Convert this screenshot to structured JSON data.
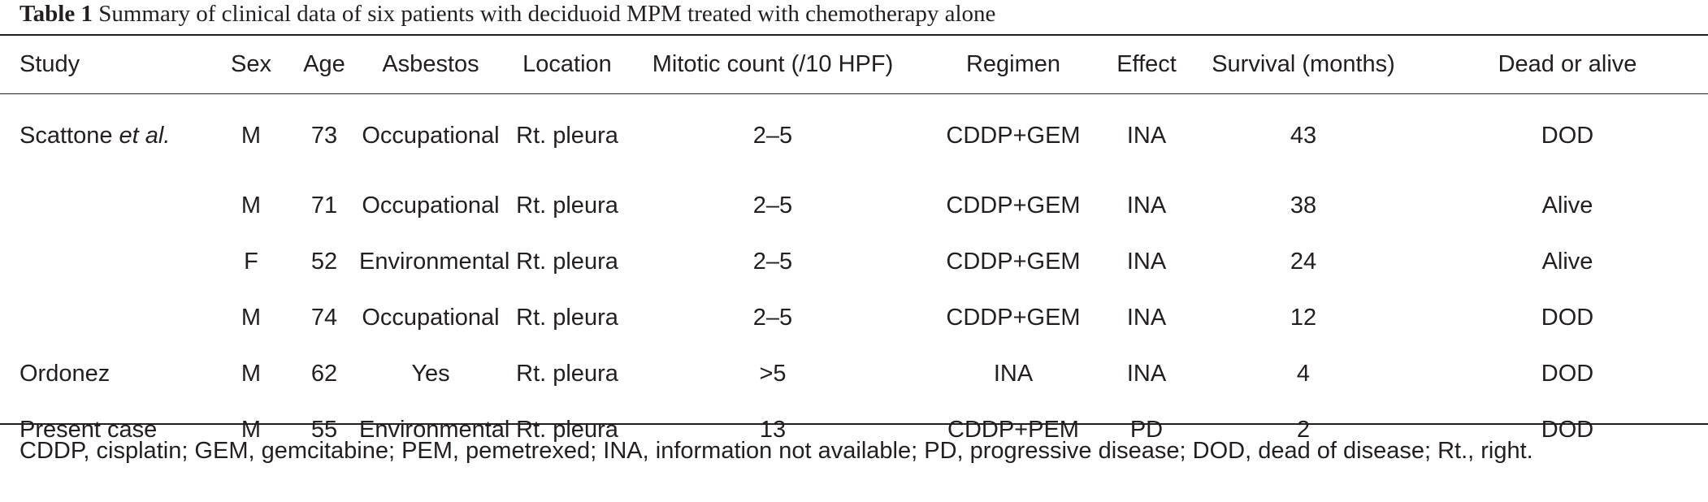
{
  "caption": {
    "label": "Table 1",
    "text": "Summary of clinical data of six patients with deciduoid MPM treated with chemotherapy alone"
  },
  "table": {
    "headers": [
      "Study",
      "Sex",
      "Age",
      "Asbestos",
      "Location",
      "Mitotic count (/10 HPF)",
      "Regimen",
      "Effect",
      "Survival (months)",
      "Dead or alive"
    ],
    "rows": [
      {
        "study": "Scattone ",
        "study_em": "et al.",
        "sex": "M",
        "age": "73",
        "asbestos": "Occupational",
        "location": "Rt. pleura",
        "mitotic": "2–5",
        "regimen": "CDDP+GEM",
        "effect": "INA",
        "survival": "43",
        "status": "DOD"
      },
      {
        "study": "",
        "study_em": "",
        "sex": "M",
        "age": "71",
        "asbestos": "Occupational",
        "location": "Rt. pleura",
        "mitotic": "2–5",
        "regimen": "CDDP+GEM",
        "effect": "INA",
        "survival": "38",
        "status": "Alive"
      },
      {
        "study": "",
        "study_em": "",
        "sex": "F",
        "age": "52",
        "asbestos": "Environmental",
        "location": "Rt. pleura",
        "mitotic": "2–5",
        "regimen": "CDDP+GEM",
        "effect": "INA",
        "survival": "24",
        "status": "Alive"
      },
      {
        "study": "",
        "study_em": "",
        "sex": "M",
        "age": "74",
        "asbestos": "Occupational",
        "location": "Rt. pleura",
        "mitotic": "2–5",
        "regimen": "CDDP+GEM",
        "effect": "INA",
        "survival": "12",
        "status": "DOD"
      },
      {
        "study": "Ordonez",
        "study_em": "",
        "sex": "M",
        "age": "62",
        "asbestos": "Yes",
        "location": "Rt. pleura",
        "mitotic": ">5",
        "regimen": "INA",
        "effect": "INA",
        "survival": "4",
        "status": "DOD"
      },
      {
        "study": "Present case",
        "study_em": "",
        "sex": "M",
        "age": "55",
        "asbestos": "Environmental",
        "location": "Rt. pleura",
        "mitotic": "13",
        "regimen": "CDDP+PEM",
        "effect": "PD",
        "survival": "2",
        "status": "DOD"
      }
    ]
  },
  "footnote": "CDDP, cisplatin; GEM, gemcitabine; PEM, pemetrexed; INA, information not available; PD, progressive disease; DOD, dead of disease; Rt., right."
}
